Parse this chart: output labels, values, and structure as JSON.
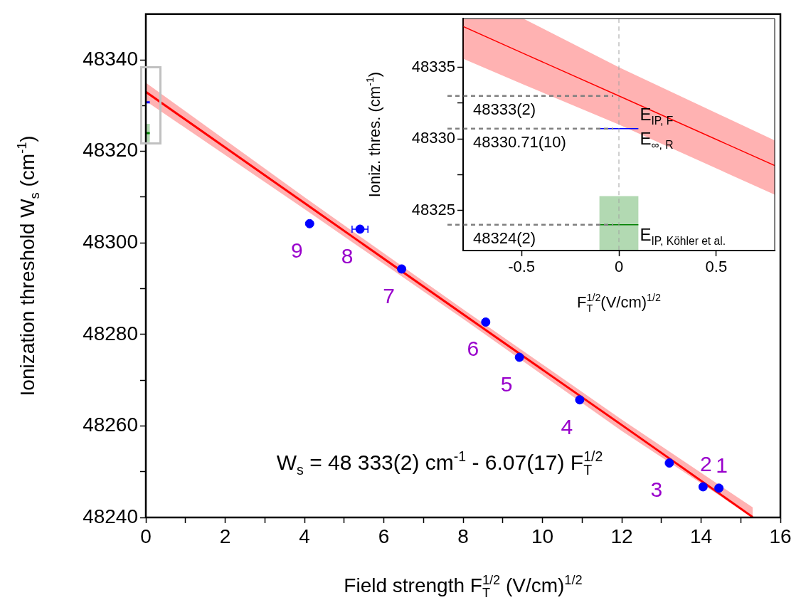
{
  "chart_data": [
    {
      "type": "scatter",
      "xlabel": "Field strength F$_{T}$$^{1/2}$ (V/cm)$^{1/2}$",
      "ylabel": "Ionization threshold W$_{s}$ (cm$^{-1}$)",
      "xlim": [
        0,
        16
      ],
      "xticks": [
        0,
        {
          "value": 1,
          "label": null
        },
        2,
        {
          "value": 3,
          "label": null
        },
        4,
        {
          "value": 5,
          "label": null
        },
        6,
        {
          "value": 7,
          "label": null
        },
        8,
        {
          "value": 9,
          "label": null
        },
        10,
        {
          "value": 11,
          "label": null
        },
        12,
        {
          "value": 13,
          "label": null
        },
        14,
        {
          "value": 15,
          "label": null
        },
        16
      ],
      "ylim": [
        48240,
        48350
      ],
      "yticks": [
        48240,
        {
          "value": 48250,
          "label": null
        },
        48260,
        {
          "value": 48270,
          "label": null
        },
        48280,
        {
          "value": 48290,
          "label": null
        },
        48300,
        {
          "value": 48310,
          "label": null
        },
        48320,
        {
          "value": 48330,
          "label": null
        },
        48340
      ],
      "grid": false,
      "legend": false,
      "series": [
        {
          "marker": "circle",
          "color": "#0000ff",
          "x": [
            4.13,
            5.4,
            6.45,
            8.57,
            9.42,
            10.94,
            13.2,
            14.05,
            14.45
          ],
          "values": [
            48304.2,
            48303.0,
            48294.3,
            48282.7,
            48275.0,
            48265.7,
            48251.9,
            48246.7,
            48246.4
          ],
          "xerrors": [
            null,
            0.2,
            null,
            null,
            null,
            null,
            null,
            null,
            null
          ]
        },
        {
          "type": "line",
          "color": "#ff0000",
          "x": [
            0,
            4,
            8,
            12,
            15.3
          ],
          "values": [
            48333,
            48308.7,
            48284.4,
            48260.2,
            48240.1
          ],
          "lower": [
            48331,
            48307.4,
            48283.4,
            48258.9,
            48240
          ],
          "upper": [
            48335,
            48310,
            48285.5,
            48261.4,
            48242.2
          ]
        },
        {
          "type": "line",
          "color": "#0000ff",
          "x": [
            0,
            0.1
          ],
          "values": [
            48330.71,
            48330.71
          ]
        },
        {
          "type": "line",
          "color": "#008000",
          "x": [
            0,
            0.1
          ],
          "values": [
            48324,
            48324
          ],
          "lower": [
            48322,
            48322
          ],
          "upper": [
            48326,
            48326
          ]
        }
      ],
      "annotations": [
        "W$_{s}$ = 48 333(2) cm$^{-1}$ - 6.07(17) F$_{T}$$^{1/2}$",
        {
          "text": "9",
          "x": 4.13,
          "y": 48304.2
        },
        {
          "text": "8",
          "x": 5.4,
          "y": 48303.0
        },
        {
          "text": "7",
          "x": 6.45,
          "y": 48294.3
        },
        {
          "text": "6",
          "x": 8.57,
          "y": 48282.7
        },
        {
          "text": "5",
          "x": 9.42,
          "y": 48275.0
        },
        {
          "text": "4",
          "x": 10.94,
          "y": 48265.7
        },
        {
          "text": "3",
          "x": 13.2,
          "y": 48251.9
        },
        {
          "text": "2",
          "x": 14.05,
          "y": 48246.7
        },
        {
          "text": "1",
          "x": 14.45,
          "y": 48246.4
        }
      ]
    },
    {
      "type": "line",
      "xlabel": "F$_{T}$$^{1/2}$(V/cm)$^{1/2}$",
      "ylabel": "Ioniz. thres. (cm$^{-1}$)",
      "xlim": [
        -0.8,
        0.8
      ],
      "xticks": [
        -0.5,
        0,
        0.5
      ],
      "ylim": [
        48322.2,
        48338.4
      ],
      "yticks": [
        48325,
        {
          "value": 48327.5,
          "label": null
        },
        48330,
        {
          "value": 48332.5,
          "label": null
        },
        48335
      ],
      "grid": false,
      "legend": false,
      "series": [
        {
          "color": "#ff0000",
          "x": [
            -0.8,
            -0.49,
            0,
            0.8
          ],
          "values": [
            48337.86,
            48335.97,
            48333,
            48328.14
          ],
          "lower": [
            48335.6,
            48333.8,
            48331,
            48326.1
          ],
          "upper": [
            48338.4,
            48338.4,
            48335,
            48329.9
          ]
        },
        {
          "color": "#0000ff",
          "x": [
            -0.1,
            0.1
          ],
          "values": [
            48330.71,
            48330.71
          ]
        },
        {
          "color": "#008000",
          "x": [
            -0.1,
            0.1
          ],
          "values": [
            48324,
            48324
          ],
          "lower": [
            48322.2,
            48322.2
          ],
          "upper": [
            48326,
            48326
          ]
        }
      ],
      "ref_lines": [
        {
          "axis": "x",
          "value": 0,
          "color": "#a0a0a0",
          "line_style": "dashed"
        },
        {
          "axis": "y",
          "value": 48333,
          "label": "48333(2)",
          "color": "#808080",
          "line_style": "dashed"
        },
        {
          "axis": "y",
          "value": 48330.71,
          "label": "48330.71(10)",
          "color": "#808080",
          "line_style": "dashed"
        },
        {
          "axis": "y",
          "value": 48324,
          "label": "48324(2)",
          "color": "#808080",
          "line_style": "dashed"
        }
      ],
      "annotations": [
        {
          "text": "E$_{IP, F}$",
          "x": 0.1,
          "y": 48332.4
        },
        {
          "text": "E$_{∞, R}$",
          "x": 0.1,
          "y": 48330.71
        },
        {
          "text": "E$_{IP, Köhler et al.}$",
          "x": 0.1,
          "y": 48324
        }
      ]
    }
  ]
}
